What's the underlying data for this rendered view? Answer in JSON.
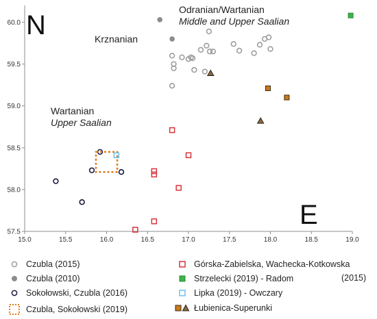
{
  "chart_data": {
    "type": "scatter",
    "xlim": [
      15.0,
      19.0
    ],
    "ylim": [
      57.5,
      60.2
    ],
    "x_ticks": [
      "15.0",
      "15.5",
      "16.0",
      "16.5",
      "17.0",
      "17.5",
      "18.0",
      "18.5",
      "19.0"
    ],
    "y_ticks": [
      "57.5",
      "58.0",
      "58.5",
      "59.0",
      "59.5",
      "60.0"
    ],
    "grid": false,
    "corner_labels": {
      "north": "N",
      "east": "E"
    },
    "annotations": {
      "odranian_title": "Odranian/Wartanian",
      "odranian_sub": "Middle and Upper Saalian",
      "krznanian": "Krznanian",
      "wartanian_title": "Wartanian",
      "wartanian_sub": "Upper Saalian"
    },
    "series": [
      {
        "name": "Czubla (2015)",
        "marker": "open-circle",
        "color": "#9e9e9e",
        "points": [
          [
            16.8,
            59.6
          ],
          [
            16.82,
            59.5
          ],
          [
            16.82,
            59.45
          ],
          [
            16.92,
            59.58
          ],
          [
            17.0,
            59.56
          ],
          [
            17.03,
            59.58
          ],
          [
            17.15,
            59.67
          ],
          [
            17.22,
            59.72
          ],
          [
            17.26,
            59.65
          ],
          [
            17.3,
            59.65
          ],
          [
            17.25,
            59.89
          ],
          [
            17.2,
            59.41
          ],
          [
            16.8,
            59.24
          ],
          [
            17.62,
            59.66
          ],
          [
            17.55,
            59.74
          ],
          [
            17.05,
            59.57
          ],
          [
            17.07,
            59.43
          ],
          [
            17.8,
            59.63
          ],
          [
            17.87,
            59.73
          ],
          [
            17.93,
            59.8
          ],
          [
            17.98,
            59.82
          ],
          [
            18.0,
            59.68
          ]
        ]
      },
      {
        "name": "Czubla (2010)",
        "marker": "filled-circle",
        "color": "#8c8c8c",
        "points": [
          [
            16.65,
            60.03
          ],
          [
            16.8,
            59.8
          ]
        ]
      },
      {
        "name": "Sokołowski, Czubla (2016)",
        "marker": "open-circle",
        "color": "#1a1a40",
        "points": [
          [
            15.92,
            58.45
          ],
          [
            15.82,
            58.23
          ],
          [
            16.18,
            58.21
          ],
          [
            15.38,
            58.1
          ],
          [
            15.7,
            57.85
          ]
        ]
      },
      {
        "name": "Czubla, Sokołowski (2019)",
        "marker": "dashed-square",
        "color": "#e07b1a",
        "points": [
          [
            16.0,
            58.33
          ]
        ]
      },
      {
        "name": "Górska-Zabielska, Wachecka-Kotkowska (2015)",
        "marker": "open-square",
        "color": "#d9333a",
        "points": [
          [
            16.8,
            58.71
          ],
          [
            17.0,
            58.41
          ],
          [
            16.58,
            58.22
          ],
          [
            16.58,
            58.18
          ],
          [
            16.88,
            58.02
          ],
          [
            16.58,
            57.62
          ],
          [
            16.35,
            57.52
          ]
        ]
      },
      {
        "name": "Strzelecki (2019) - Radom",
        "marker": "filled-square",
        "color": "#3cb44b",
        "points": [
          [
            18.98,
            60.08
          ]
        ]
      },
      {
        "name": "Lipka (2019) - Owczary",
        "marker": "open-square",
        "color": "#6bbfe8",
        "points": [
          [
            16.12,
            58.41
          ]
        ]
      },
      {
        "name": "Łubienica-Superunki",
        "marker": "square-and-triangle",
        "color": "#c97a1e",
        "squares": [
          [
            17.97,
            59.21
          ],
          [
            18.2,
            59.1
          ]
        ],
        "triangles": [
          [
            17.27,
            59.39
          ],
          [
            17.88,
            58.82
          ]
        ]
      }
    ],
    "legend": [
      {
        "symbol": "open-circle-gray",
        "label": "Czubla (2015)"
      },
      {
        "symbol": "filled-circle-gray",
        "label": "Czubla (2010)"
      },
      {
        "symbol": "open-circle-navy",
        "label": "Sokołowski, Czubla (2016)"
      },
      {
        "symbol": "dashed-square-orange",
        "label": "Czubla, Sokołowski (2019)"
      },
      {
        "symbol": "open-square-red",
        "label": "Górska-Zabielska, Wachecka-Kotkowska"
      },
      {
        "symbol": "filled-square-green",
        "label": "Strzelecki (2019) - Radom"
      },
      {
        "symbol": "open-square-blue",
        "label": "Lipka (2019) - Owczary"
      },
      {
        "symbol": "square-triangle-brown",
        "label": "Łubienica-Superunki"
      }
    ],
    "legend_extra": "(2015)"
  }
}
